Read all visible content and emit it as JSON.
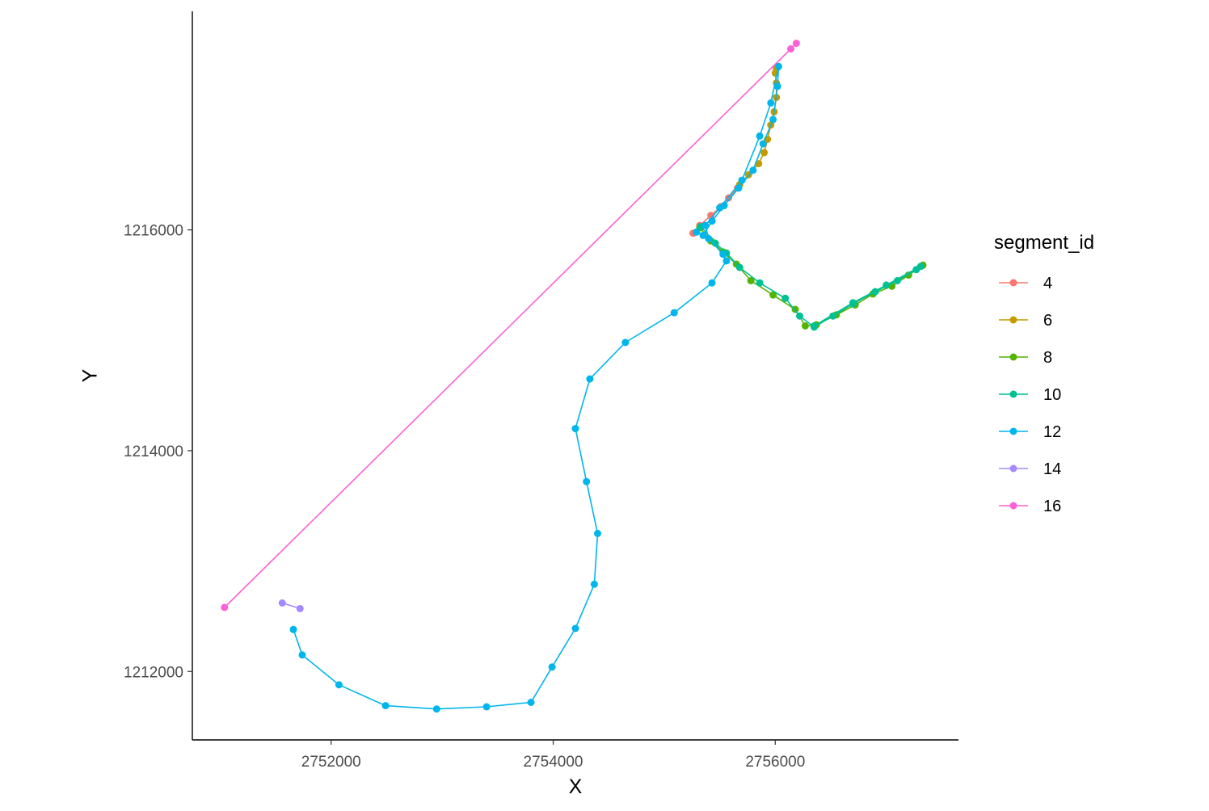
{
  "chart_data": {
    "type": "line",
    "title": "",
    "xlabel": "X",
    "ylabel": "Y",
    "xlim": [
      2750750,
      2757650
    ],
    "ylim": [
      1211380,
      1217980
    ],
    "x_ticks": [
      2752000,
      2754000,
      2756000
    ],
    "x_tick_labels": [
      "2752000",
      "2754000",
      "2756000"
    ],
    "y_ticks": [
      1212000,
      1214000,
      1216000
    ],
    "y_tick_labels": [
      "1212000",
      "1214000",
      "1216000"
    ],
    "grid": false,
    "legend": {
      "title": "segment_id",
      "placement": "right"
    },
    "series": [
      {
        "name": "4",
        "color": "#F8766D",
        "points": [
          [
            2755260,
            1215970
          ],
          [
            2755320,
            1216040
          ],
          [
            2755420,
            1216130
          ],
          [
            2755510,
            1216210
          ],
          [
            2755580,
            1216290
          ],
          [
            2755660,
            1216380
          ]
        ]
      },
      {
        "name": "6",
        "color": "#C49A00",
        "points": [
          [
            2755680,
            1216410
          ],
          [
            2755760,
            1216500
          ],
          [
            2755850,
            1216600
          ],
          [
            2755900,
            1216700
          ],
          [
            2755930,
            1216820
          ],
          [
            2755960,
            1216950
          ],
          [
            2755990,
            1217070
          ],
          [
            2756010,
            1217200
          ],
          [
            2756010,
            1217330
          ],
          [
            2756000,
            1217420
          ],
          [
            2756010,
            1217460
          ]
        ]
      },
      {
        "name": "8",
        "color": "#53B400",
        "points": [
          [
            2755320,
            1216020
          ],
          [
            2755420,
            1215900
          ],
          [
            2755530,
            1215800
          ],
          [
            2755650,
            1215690
          ],
          [
            2755780,
            1215540
          ],
          [
            2755980,
            1215410
          ],
          [
            2756180,
            1215280
          ],
          [
            2756270,
            1215130
          ],
          [
            2756370,
            1215140
          ],
          [
            2756550,
            1215230
          ],
          [
            2756720,
            1215320
          ],
          [
            2756880,
            1215420
          ],
          [
            2757050,
            1215490
          ],
          [
            2757200,
            1215590
          ],
          [
            2757330,
            1215680
          ]
        ]
      },
      {
        "name": "10",
        "color": "#00C094",
        "points": [
          [
            2755330,
            1216030
          ],
          [
            2755460,
            1215880
          ],
          [
            2755560,
            1215790
          ],
          [
            2755680,
            1215660
          ],
          [
            2755860,
            1215520
          ],
          [
            2756090,
            1215380
          ],
          [
            2756220,
            1215220
          ],
          [
            2756350,
            1215120
          ],
          [
            2756520,
            1215220
          ],
          [
            2756700,
            1215330
          ],
          [
            2756900,
            1215440
          ],
          [
            2757100,
            1215540
          ],
          [
            2757270,
            1215640
          ],
          [
            2757310,
            1215670
          ],
          [
            2757000,
            1215500
          ],
          [
            2756700,
            1215340
          ],
          [
            2756350,
            1215130
          ]
        ]
      },
      {
        "name": "12",
        "color": "#00B6EB",
        "points": [
          [
            2755290,
            1215980
          ],
          [
            2755350,
            1215950
          ],
          [
            2755430,
            1216080
          ],
          [
            2755540,
            1216220
          ],
          [
            2755670,
            1216380
          ],
          [
            2755800,
            1216540
          ],
          [
            2755890,
            1216780
          ],
          [
            2755980,
            1217000
          ],
          [
            2756020,
            1217300
          ],
          [
            2756030,
            1217480
          ],
          [
            2755960,
            1217150
          ],
          [
            2755860,
            1216850
          ],
          [
            2755700,
            1216450
          ],
          [
            2755500,
            1216200
          ],
          [
            2755370,
            1216040
          ],
          [
            2755400,
            1215920
          ],
          [
            2755530,
            1215780
          ],
          [
            2755560,
            1215720
          ],
          [
            2755430,
            1215520
          ],
          [
            2755090,
            1215250
          ],
          [
            2754650,
            1214980
          ],
          [
            2754330,
            1214650
          ],
          [
            2754200,
            1214200
          ],
          [
            2754300,
            1213720
          ],
          [
            2754400,
            1213250
          ],
          [
            2754370,
            1212790
          ],
          [
            2754200,
            1212390
          ],
          [
            2753990,
            1212040
          ],
          [
            2753800,
            1211720
          ],
          [
            2753400,
            1211680
          ],
          [
            2752950,
            1211660
          ],
          [
            2752490,
            1211690
          ],
          [
            2752070,
            1211880
          ],
          [
            2751740,
            1212150
          ],
          [
            2751660,
            1212380
          ]
        ]
      },
      {
        "name": "14",
        "color": "#A58AFF",
        "points": [
          [
            2751560,
            1212620
          ],
          [
            2751720,
            1212570
          ]
        ]
      },
      {
        "name": "16",
        "color": "#FB61D7",
        "points": [
          [
            2751040,
            1212580
          ],
          [
            2756140,
            1217640
          ],
          [
            2756190,
            1217690
          ]
        ]
      }
    ]
  }
}
